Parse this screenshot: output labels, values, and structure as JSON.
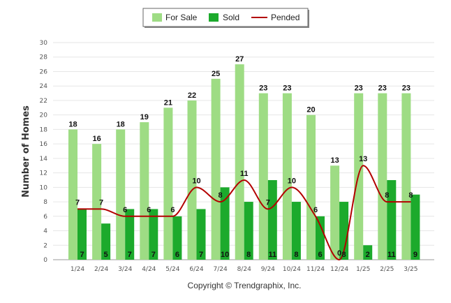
{
  "chart_data": {
    "type": "bar",
    "categories": [
      "1/24",
      "2/24",
      "3/24",
      "4/24",
      "5/24",
      "6/24",
      "7/24",
      "8/24",
      "9/24",
      "10/24",
      "11/24",
      "12/24",
      "1/25",
      "2/25",
      "3/25"
    ],
    "series": [
      {
        "name": "For Sale",
        "type": "bar",
        "color": "#9edc84",
        "values": [
          18,
          16,
          18,
          19,
          21,
          22,
          25,
          27,
          23,
          23,
          20,
          13,
          23,
          23,
          23
        ]
      },
      {
        "name": "Sold",
        "type": "bar",
        "color": "#1caa2c",
        "values": [
          7,
          5,
          7,
          7,
          6,
          7,
          10,
          8,
          11,
          8,
          6,
          8,
          2,
          11,
          9
        ]
      },
      {
        "name": "Pended",
        "type": "line",
        "color": "#b30000",
        "values": [
          7,
          7,
          6,
          6,
          6,
          10,
          8,
          11,
          7,
          10,
          6,
          0,
          13,
          8,
          8
        ]
      }
    ],
    "ylabel": "Number of Homes",
    "xlabel": "",
    "ylim": [
      0,
      30
    ],
    "ytick_step": 2,
    "grid": true,
    "legend": "top-center"
  },
  "credit": "Copyright © Trendgraphix, Inc."
}
